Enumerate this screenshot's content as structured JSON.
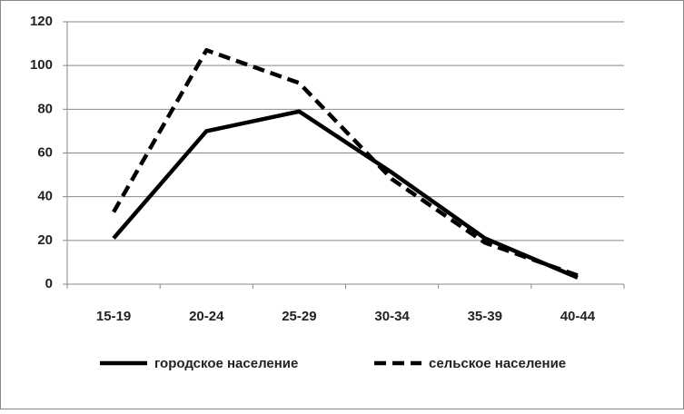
{
  "chart_data": {
    "type": "line",
    "categories": [
      "15-19",
      "20-24",
      "25-29",
      "30-34",
      "35-39",
      "40-44"
    ],
    "series": [
      {
        "name": "городское население",
        "color": "#000000",
        "style": "solid",
        "values": [
          21,
          70,
          79,
          51,
          21,
          3
        ]
      },
      {
        "name": "сельское население",
        "color": "#000000",
        "style": "dashed",
        "values": [
          33,
          107,
          92,
          48,
          19,
          4
        ]
      }
    ],
    "ylim": [
      0,
      120
    ],
    "yticks": [
      0,
      20,
      40,
      60,
      80,
      100,
      120
    ],
    "grid": true,
    "legend": "bottom"
  }
}
